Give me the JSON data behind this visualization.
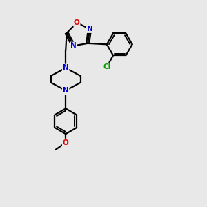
{
  "background_color": "#e8e8e8",
  "bond_color": "#000000",
  "N_color": "#0000cc",
  "O_color": "#dd0000",
  "Cl_color": "#009900",
  "line_width": 1.6,
  "figsize": [
    3.0,
    3.0
  ],
  "dpi": 100,
  "xlim": [
    0,
    10
  ],
  "ylim": [
    0,
    10
  ]
}
